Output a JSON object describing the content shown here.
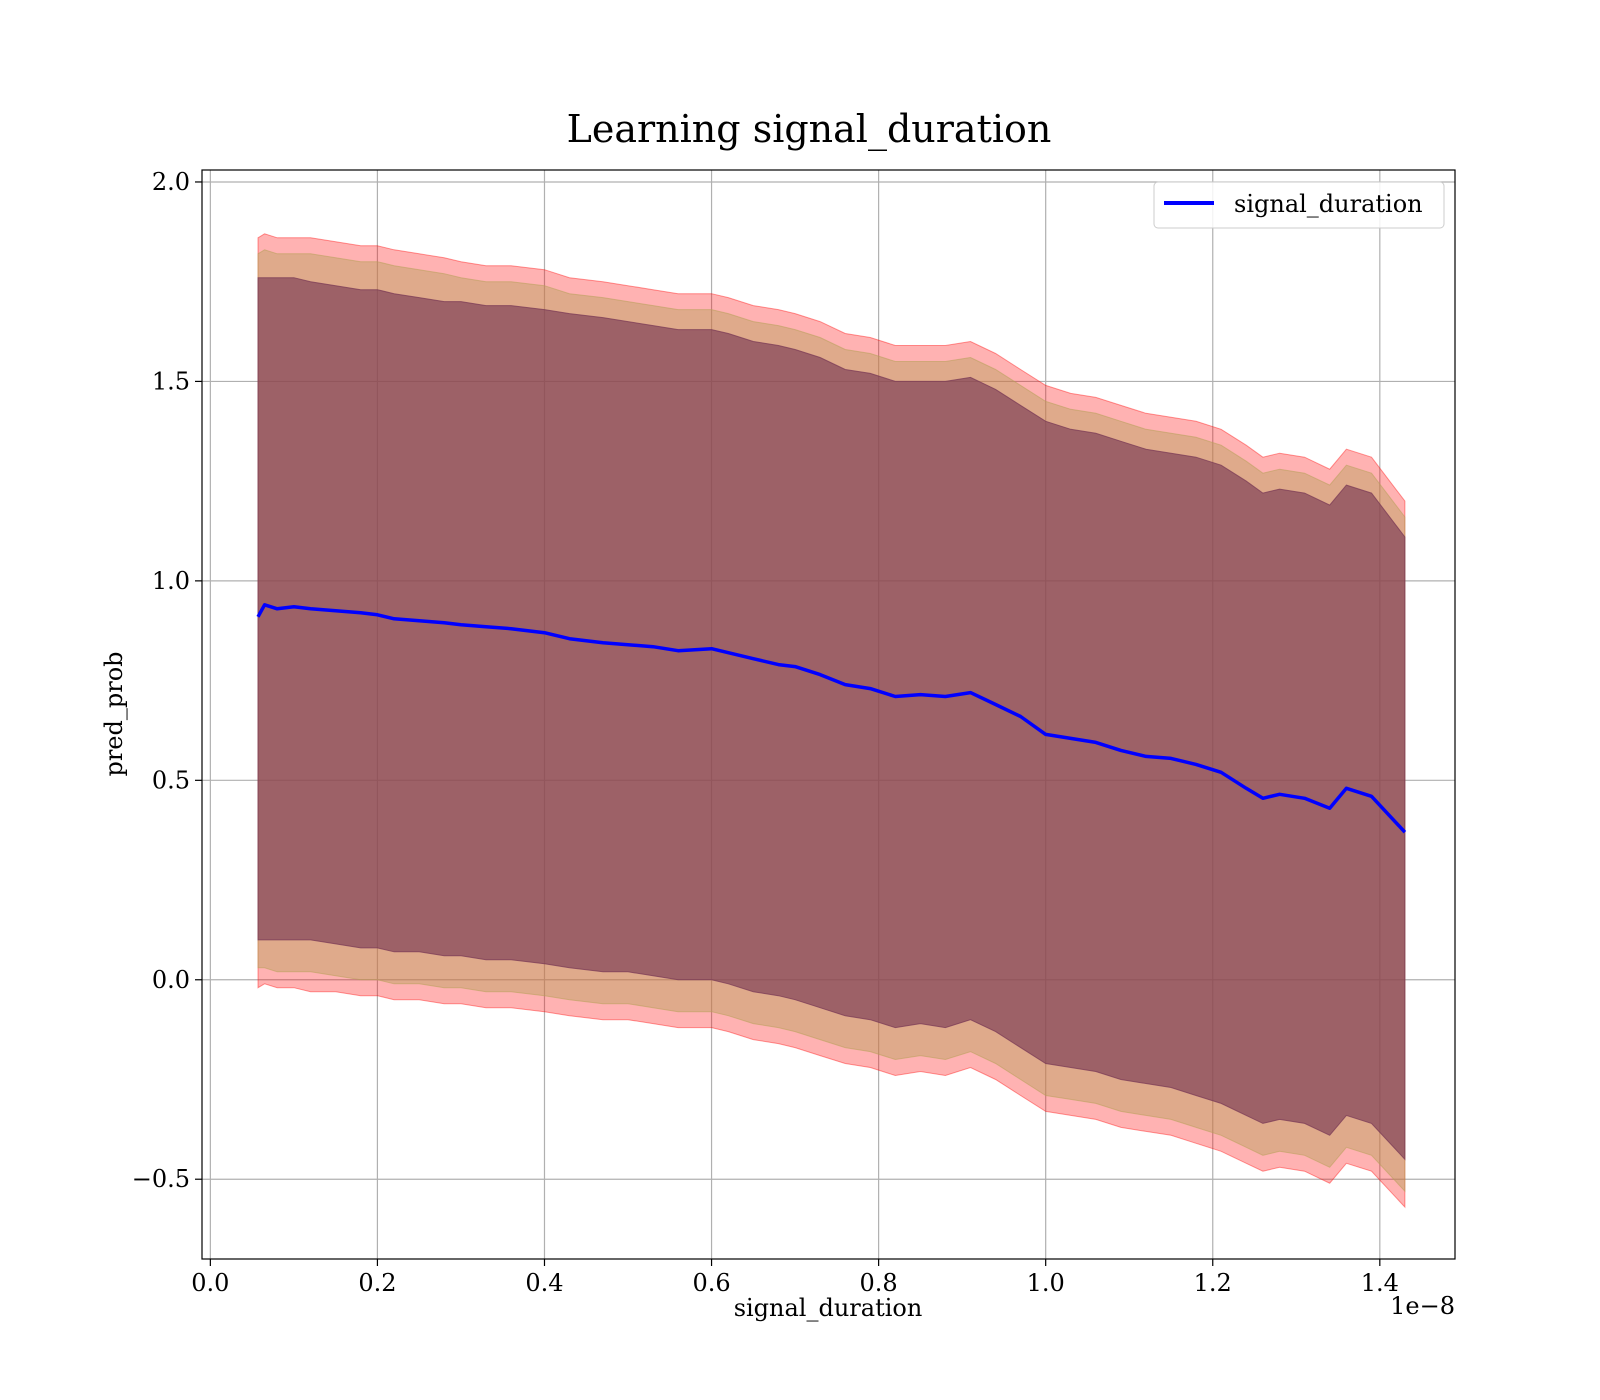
{
  "chart_data": {
    "type": "line",
    "title": "Learning signal_duration",
    "xlabel": "signal_duration",
    "ylabel": "pred_prob",
    "x_offset_label": "1e−8",
    "xlim": [
      -0.01,
      1.49
    ],
    "ylim": [
      -0.7,
      2.03
    ],
    "x_ticks": [
      0.0,
      0.2,
      0.4,
      0.6,
      0.8,
      1.0,
      1.2,
      1.4
    ],
    "x_tick_labels": [
      "0.0",
      "0.2",
      "0.4",
      "0.6",
      "0.8",
      "1.0",
      "1.2",
      "1.4"
    ],
    "y_ticks": [
      -0.5,
      0.0,
      0.5,
      1.0,
      1.5,
      2.0
    ],
    "y_tick_labels": [
      "−0.5",
      "0.0",
      "0.5",
      "1.0",
      "1.5",
      "2.0"
    ],
    "grid": true,
    "legend_position": "top-right",
    "x": [
      0.057,
      0.065,
      0.08,
      0.1,
      0.12,
      0.15,
      0.18,
      0.2,
      0.22,
      0.25,
      0.28,
      0.3,
      0.33,
      0.36,
      0.4,
      0.43,
      0.47,
      0.5,
      0.53,
      0.56,
      0.6,
      0.62,
      0.65,
      0.68,
      0.7,
      0.73,
      0.76,
      0.79,
      0.82,
      0.85,
      0.88,
      0.91,
      0.94,
      0.97,
      1.0,
      1.03,
      1.06,
      1.09,
      1.12,
      1.15,
      1.18,
      1.21,
      1.24,
      1.26,
      1.28,
      1.31,
      1.34,
      1.36,
      1.39,
      1.43
    ],
    "series": [
      {
        "name": "signal_duration",
        "color": "#0000ff",
        "values": [
          0.91,
          0.94,
          0.93,
          0.935,
          0.93,
          0.925,
          0.92,
          0.915,
          0.905,
          0.9,
          0.895,
          0.89,
          0.885,
          0.88,
          0.87,
          0.855,
          0.845,
          0.84,
          0.835,
          0.825,
          0.83,
          0.82,
          0.805,
          0.79,
          0.785,
          0.765,
          0.74,
          0.73,
          0.71,
          0.715,
          0.71,
          0.72,
          0.69,
          0.66,
          0.615,
          0.605,
          0.595,
          0.575,
          0.56,
          0.555,
          0.54,
          0.52,
          0.48,
          0.455,
          0.465,
          0.455,
          0.43,
          0.48,
          0.46,
          0.37
        ]
      }
    ],
    "bands": [
      {
        "color": "#ff0000",
        "opacity": 0.3,
        "lower": [
          -0.02,
          -0.01,
          -0.02,
          -0.02,
          -0.03,
          -0.03,
          -0.04,
          -0.04,
          -0.05,
          -0.05,
          -0.06,
          -0.06,
          -0.07,
          -0.07,
          -0.08,
          -0.09,
          -0.1,
          -0.1,
          -0.11,
          -0.12,
          -0.12,
          -0.13,
          -0.15,
          -0.16,
          -0.17,
          -0.19,
          -0.21,
          -0.22,
          -0.24,
          -0.23,
          -0.24,
          -0.22,
          -0.25,
          -0.29,
          -0.33,
          -0.34,
          -0.35,
          -0.37,
          -0.38,
          -0.39,
          -0.41,
          -0.43,
          -0.46,
          -0.48,
          -0.47,
          -0.48,
          -0.51,
          -0.46,
          -0.48,
          -0.57
        ],
        "upper": [
          1.86,
          1.87,
          1.86,
          1.86,
          1.86,
          1.85,
          1.84,
          1.84,
          1.83,
          1.82,
          1.81,
          1.8,
          1.79,
          1.79,
          1.78,
          1.76,
          1.75,
          1.74,
          1.73,
          1.72,
          1.72,
          1.71,
          1.69,
          1.68,
          1.67,
          1.65,
          1.62,
          1.61,
          1.59,
          1.59,
          1.59,
          1.6,
          1.57,
          1.53,
          1.49,
          1.47,
          1.46,
          1.44,
          1.42,
          1.41,
          1.4,
          1.38,
          1.34,
          1.31,
          1.32,
          1.31,
          1.28,
          1.33,
          1.31,
          1.2
        ]
      },
      {
        "color": "#b8a05a",
        "opacity": 0.45,
        "lower": [
          0.03,
          0.03,
          0.02,
          0.02,
          0.02,
          0.01,
          0.0,
          0.0,
          -0.01,
          -0.01,
          -0.02,
          -0.02,
          -0.03,
          -0.03,
          -0.04,
          -0.05,
          -0.06,
          -0.06,
          -0.07,
          -0.08,
          -0.08,
          -0.09,
          -0.11,
          -0.12,
          -0.13,
          -0.15,
          -0.17,
          -0.18,
          -0.2,
          -0.19,
          -0.2,
          -0.18,
          -0.21,
          -0.25,
          -0.29,
          -0.3,
          -0.31,
          -0.33,
          -0.34,
          -0.35,
          -0.37,
          -0.39,
          -0.42,
          -0.44,
          -0.43,
          -0.44,
          -0.47,
          -0.42,
          -0.44,
          -0.53
        ],
        "upper": [
          1.82,
          1.83,
          1.82,
          1.82,
          1.82,
          1.81,
          1.8,
          1.8,
          1.79,
          1.78,
          1.77,
          1.76,
          1.75,
          1.75,
          1.74,
          1.72,
          1.71,
          1.7,
          1.69,
          1.68,
          1.68,
          1.67,
          1.65,
          1.64,
          1.63,
          1.61,
          1.58,
          1.57,
          1.55,
          1.55,
          1.55,
          1.56,
          1.53,
          1.49,
          1.45,
          1.43,
          1.42,
          1.4,
          1.38,
          1.37,
          1.36,
          1.34,
          1.3,
          1.27,
          1.28,
          1.27,
          1.24,
          1.29,
          1.27,
          1.16
        ]
      },
      {
        "color": "#7a3a55",
        "opacity": 0.65,
        "lower": [
          0.1,
          0.1,
          0.1,
          0.1,
          0.1,
          0.09,
          0.08,
          0.08,
          0.07,
          0.07,
          0.06,
          0.06,
          0.05,
          0.05,
          0.04,
          0.03,
          0.02,
          0.02,
          0.01,
          0.0,
          0.0,
          -0.01,
          -0.03,
          -0.04,
          -0.05,
          -0.07,
          -0.09,
          -0.1,
          -0.12,
          -0.11,
          -0.12,
          -0.1,
          -0.13,
          -0.17,
          -0.21,
          -0.22,
          -0.23,
          -0.25,
          -0.26,
          -0.27,
          -0.29,
          -0.31,
          -0.34,
          -0.36,
          -0.35,
          -0.36,
          -0.39,
          -0.34,
          -0.36,
          -0.45
        ],
        "upper": [
          1.76,
          1.76,
          1.76,
          1.76,
          1.75,
          1.74,
          1.73,
          1.73,
          1.72,
          1.71,
          1.7,
          1.7,
          1.69,
          1.69,
          1.68,
          1.67,
          1.66,
          1.65,
          1.64,
          1.63,
          1.63,
          1.62,
          1.6,
          1.59,
          1.58,
          1.56,
          1.53,
          1.52,
          1.5,
          1.5,
          1.5,
          1.51,
          1.48,
          1.44,
          1.4,
          1.38,
          1.37,
          1.35,
          1.33,
          1.32,
          1.31,
          1.29,
          1.25,
          1.22,
          1.23,
          1.22,
          1.19,
          1.24,
          1.22,
          1.11
        ]
      }
    ]
  }
}
